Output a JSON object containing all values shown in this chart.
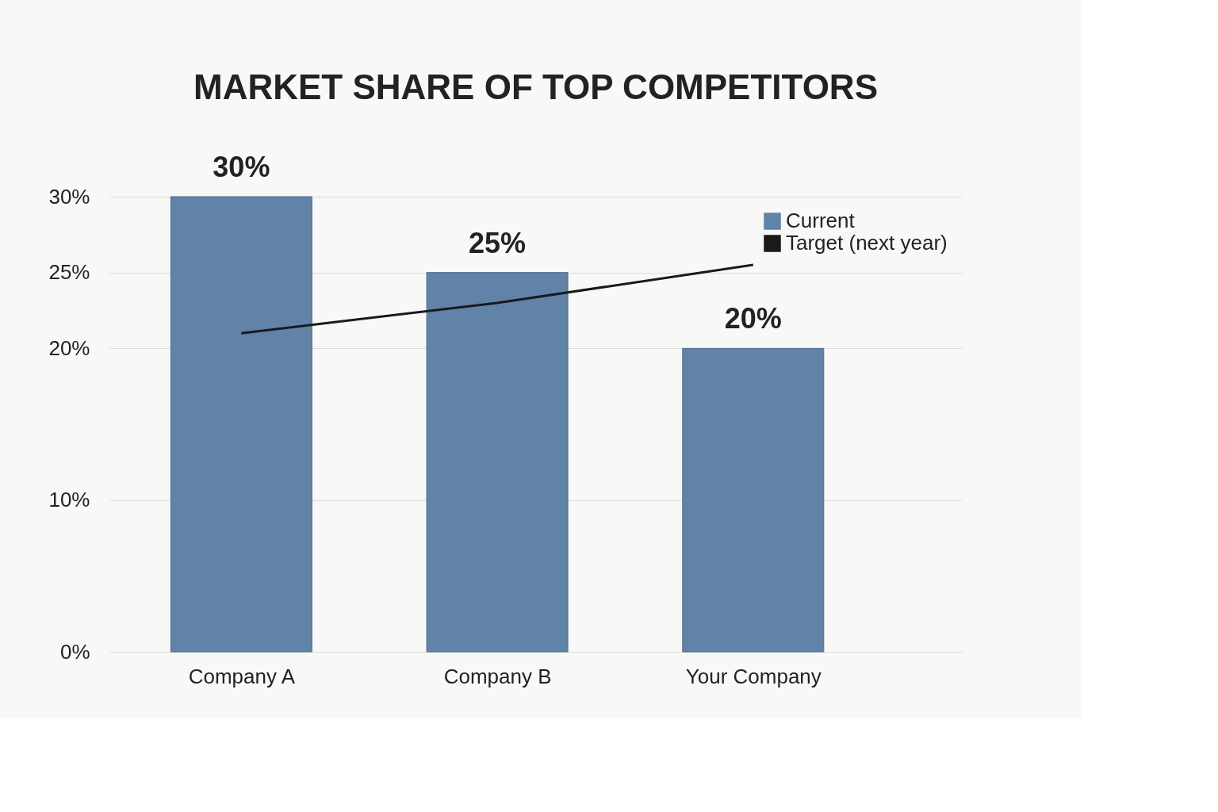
{
  "chart_data": {
    "type": "bar",
    "title": "MARKET SHARE OF TOP COMPETITORS",
    "categories": [
      "Company A",
      "Company B",
      "Your Company"
    ],
    "series": [
      {
        "name": "Current",
        "color": "#6283a8",
        "values": [
          30,
          25,
          20
        ],
        "value_labels": [
          "30%",
          "25%",
          "20%"
        ]
      },
      {
        "name": "Target (next year)",
        "type": "line",
        "color": "#1a1a1a",
        "values": [
          21,
          23,
          25.5
        ]
      }
    ],
    "ylim": [
      0,
      30
    ],
    "yticks": [
      {
        "value": 0,
        "label": "0%"
      },
      {
        "value": 10,
        "label": "10%"
      },
      {
        "value": 20,
        "label": "20%"
      },
      {
        "value": 25,
        "label": "25%"
      },
      {
        "value": 30,
        "label": "30%"
      }
    ],
    "grid": "y",
    "legend": "top right"
  }
}
